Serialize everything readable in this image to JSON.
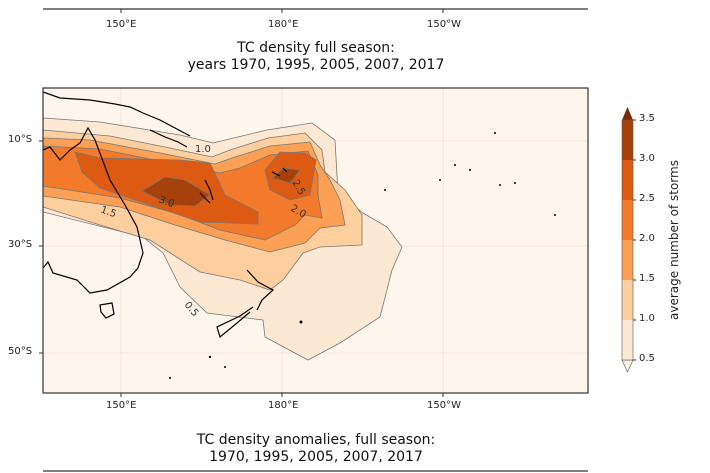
{
  "top_panel": {
    "xticks": [
      "150°E",
      "180°E",
      "150°W"
    ]
  },
  "main_panel": {
    "title_line1": "TC density full season:",
    "title_line2": "years 1970, 1995, 2005, 2007, 2017",
    "xticks": [
      "150°E",
      "180°E",
      "150°W"
    ],
    "yticks": [
      "10°S",
      "30°S",
      "50°S"
    ],
    "contour_labels": [
      "1.0",
      "1.5",
      "3.0",
      "2.5",
      "2.0",
      "0.5"
    ],
    "colorbar": {
      "label": "average number of storms",
      "ticks": [
        "0.5",
        "1.0",
        "1.5",
        "2.0",
        "2.5",
        "3.0",
        "3.5"
      ],
      "colors": [
        "#fde8d4",
        "#fdcf9e",
        "#fba055",
        "#f27a2a",
        "#dc5a12",
        "#a8400c",
        "#7f2704"
      ]
    }
  },
  "bottom_panel": {
    "title_line1": "TC density anomalies, full season:",
    "title_line2": "1970, 1995, 2005, 2007, 2017"
  }
}
